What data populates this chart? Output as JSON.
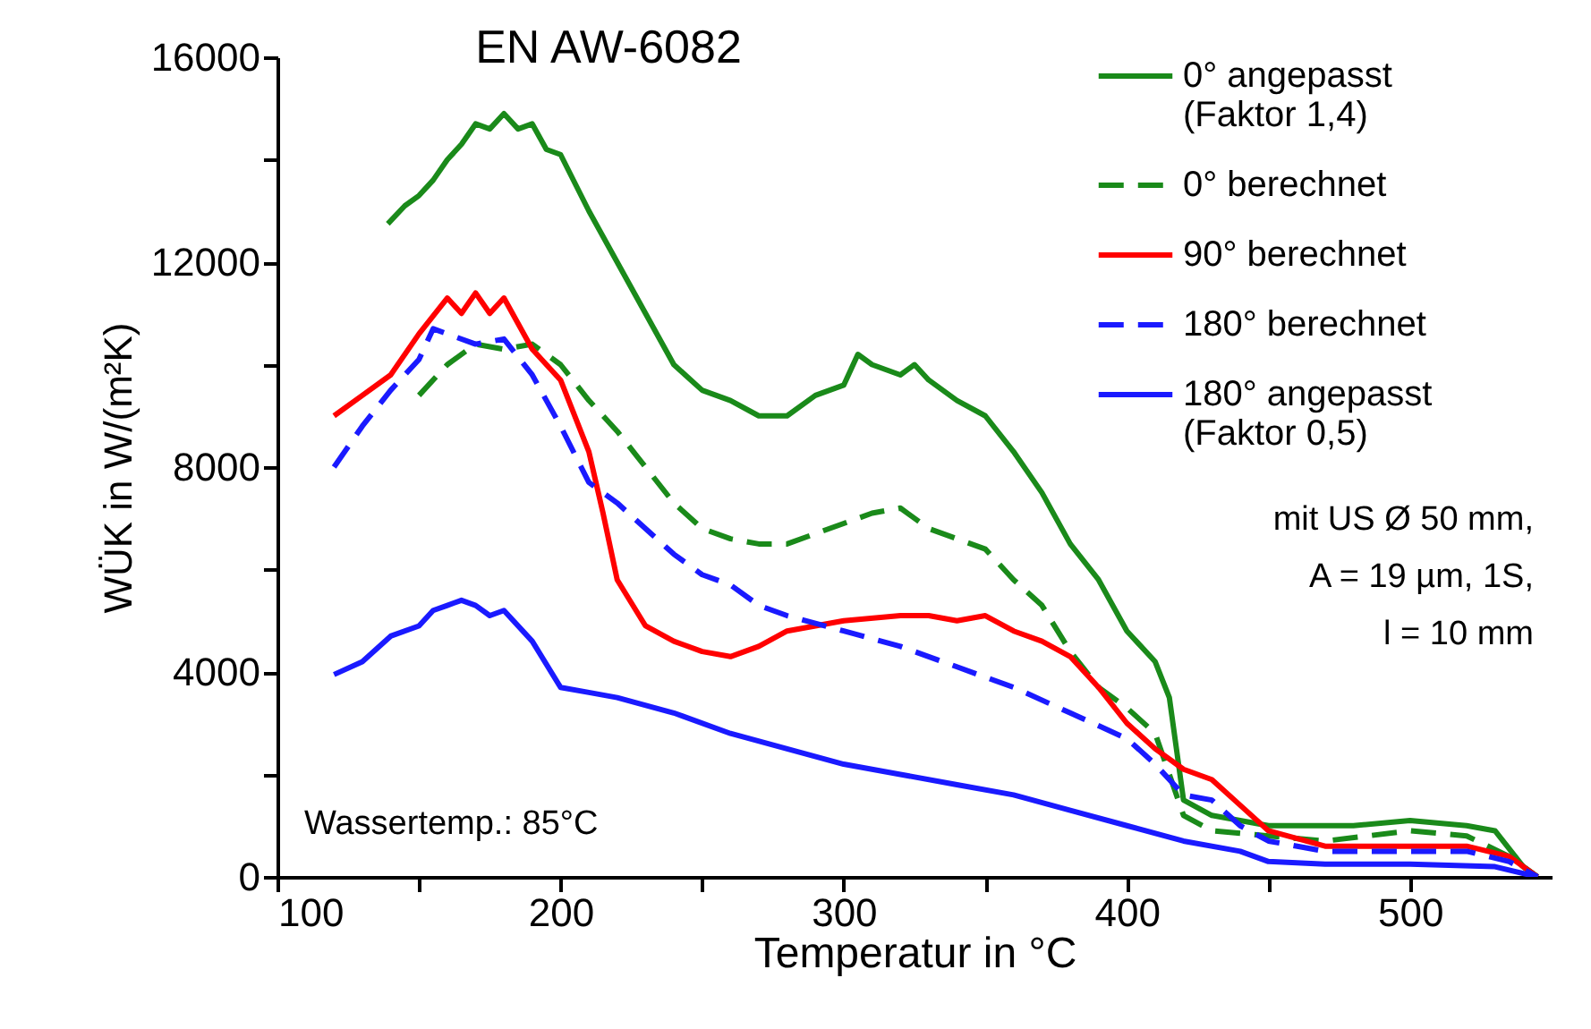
{
  "chart_data": {
    "type": "line",
    "title": "EN AW-6082",
    "xlabel": "Temperatur in °C",
    "ylabel": "WÜK in W/(m²K)",
    "xlim": [
      100,
      550
    ],
    "ylim": [
      0,
      16000
    ],
    "xticks": [
      100,
      {
        "value": 150,
        "label": null
      },
      200,
      {
        "value": 250,
        "label": null
      },
      300,
      {
        "value": 350,
        "label": null
      },
      400,
      {
        "value": 450,
        "label": null
      },
      500
    ],
    "yticks": [
      0,
      {
        "value": 2000,
        "label": null
      },
      4000,
      {
        "value": 6000,
        "label": null
      },
      8000,
      {
        "value": 10000,
        "label": null
      },
      12000,
      {
        "value": 14000,
        "label": null
      },
      16000
    ],
    "grid": false,
    "legend": "top right",
    "marker": "none",
    "annotations": [
      "Wassertemp.: 85°C",
      "mit US Ø 50 mm,",
      "A = 19 µm, 1S,",
      "l = 10 mm"
    ],
    "series": [
      {
        "name": "0° angepasst (Faktor 1,4)",
        "color": "#1a8a1a",
        "line_style": "solid",
        "x": [
          139,
          145,
          150,
          155,
          160,
          165,
          170,
          175,
          180,
          185,
          190,
          195,
          200,
          210,
          220,
          230,
          240,
          250,
          260,
          270,
          280,
          290,
          300,
          305,
          310,
          320,
          325,
          330,
          340,
          350,
          360,
          370,
          380,
          390,
          400,
          410,
          415,
          420,
          430,
          440,
          450,
          460,
          480,
          500,
          520,
          530,
          540,
          545
        ],
        "values": [
          12750,
          13100,
          13300,
          13600,
          14000,
          14300,
          14700,
          14600,
          14900,
          14600,
          14700,
          14200,
          14100,
          13000,
          12000,
          11000,
          10000,
          9500,
          9300,
          9000,
          9000,
          9400,
          9600,
          10200,
          10000,
          9800,
          10000,
          9700,
          9300,
          9000,
          8300,
          7500,
          6500,
          5800,
          4800,
          4200,
          3500,
          1500,
          1200,
          1100,
          1000,
          1000,
          1000,
          1100,
          1000,
          900,
          200,
          0
        ]
      },
      {
        "name": "0° berechnet",
        "color": "#1a8a1a",
        "line_style": "dashed",
        "x": [
          150,
          160,
          170,
          180,
          190,
          200,
          210,
          220,
          230,
          240,
          250,
          260,
          270,
          280,
          290,
          300,
          310,
          320,
          330,
          340,
          350,
          360,
          370,
          380,
          390,
          400,
          410,
          420,
          430,
          450,
          470,
          500,
          520,
          535,
          545
        ],
        "values": [
          9400,
          10000,
          10400,
          10300,
          10400,
          10000,
          9300,
          8700,
          8000,
          7300,
          6800,
          6600,
          6500,
          6500,
          6700,
          6900,
          7100,
          7200,
          6800,
          6600,
          6400,
          5800,
          5300,
          4400,
          3700,
          3300,
          2800,
          1200,
          900,
          800,
          700,
          900,
          800,
          400,
          0
        ]
      },
      {
        "name": "90° berechnet",
        "color": "#ff0000",
        "line_style": "solid",
        "x": [
          120,
          130,
          140,
          150,
          160,
          165,
          170,
          175,
          180,
          190,
          200,
          210,
          215,
          220,
          230,
          240,
          250,
          260,
          270,
          280,
          290,
          300,
          320,
          330,
          340,
          350,
          360,
          370,
          380,
          390,
          400,
          410,
          420,
          430,
          440,
          450,
          470,
          500,
          520,
          535,
          545
        ],
        "values": [
          9000,
          9400,
          9800,
          10600,
          11300,
          11000,
          11400,
          11000,
          11300,
          10300,
          9700,
          8300,
          7100,
          5800,
          4900,
          4600,
          4400,
          4300,
          4500,
          4800,
          4900,
          5000,
          5100,
          5100,
          5000,
          5100,
          4800,
          4600,
          4300,
          3700,
          3000,
          2500,
          2100,
          1900,
          1400,
          900,
          600,
          600,
          600,
          400,
          0
        ]
      },
      {
        "name": "180° berechnet",
        "color": "#1a1aff",
        "line_style": "dashed",
        "x": [
          120,
          130,
          140,
          150,
          155,
          160,
          170,
          180,
          190,
          200,
          210,
          220,
          230,
          240,
          250,
          260,
          270,
          280,
          300,
          320,
          340,
          360,
          380,
          400,
          410,
          420,
          430,
          440,
          450,
          470,
          500,
          520,
          535,
          545
        ],
        "values": [
          8000,
          8800,
          9500,
          10100,
          10700,
          10600,
          10400,
          10500,
          9800,
          8800,
          7700,
          7300,
          6800,
          6300,
          5900,
          5700,
          5300,
          5100,
          4800,
          4500,
          4100,
          3700,
          3200,
          2700,
          2200,
          1600,
          1500,
          1000,
          700,
          500,
          500,
          500,
          300,
          0
        ]
      },
      {
        "name": "180° angepasst (Faktor 0,5)",
        "color": "#1a1aff",
        "line_style": "solid",
        "x": [
          120,
          130,
          140,
          150,
          155,
          160,
          165,
          170,
          175,
          180,
          190,
          200,
          210,
          220,
          240,
          260,
          280,
          300,
          320,
          340,
          360,
          380,
          400,
          420,
          440,
          450,
          470,
          500,
          530,
          545
        ],
        "values": [
          3950,
          4200,
          4700,
          4900,
          5200,
          5300,
          5400,
          5300,
          5100,
          5200,
          4600,
          3700,
          3600,
          3500,
          3200,
          2800,
          2500,
          2200,
          2000,
          1800,
          1600,
          1300,
          1000,
          700,
          500,
          300,
          250,
          250,
          200,
          0
        ]
      }
    ]
  }
}
